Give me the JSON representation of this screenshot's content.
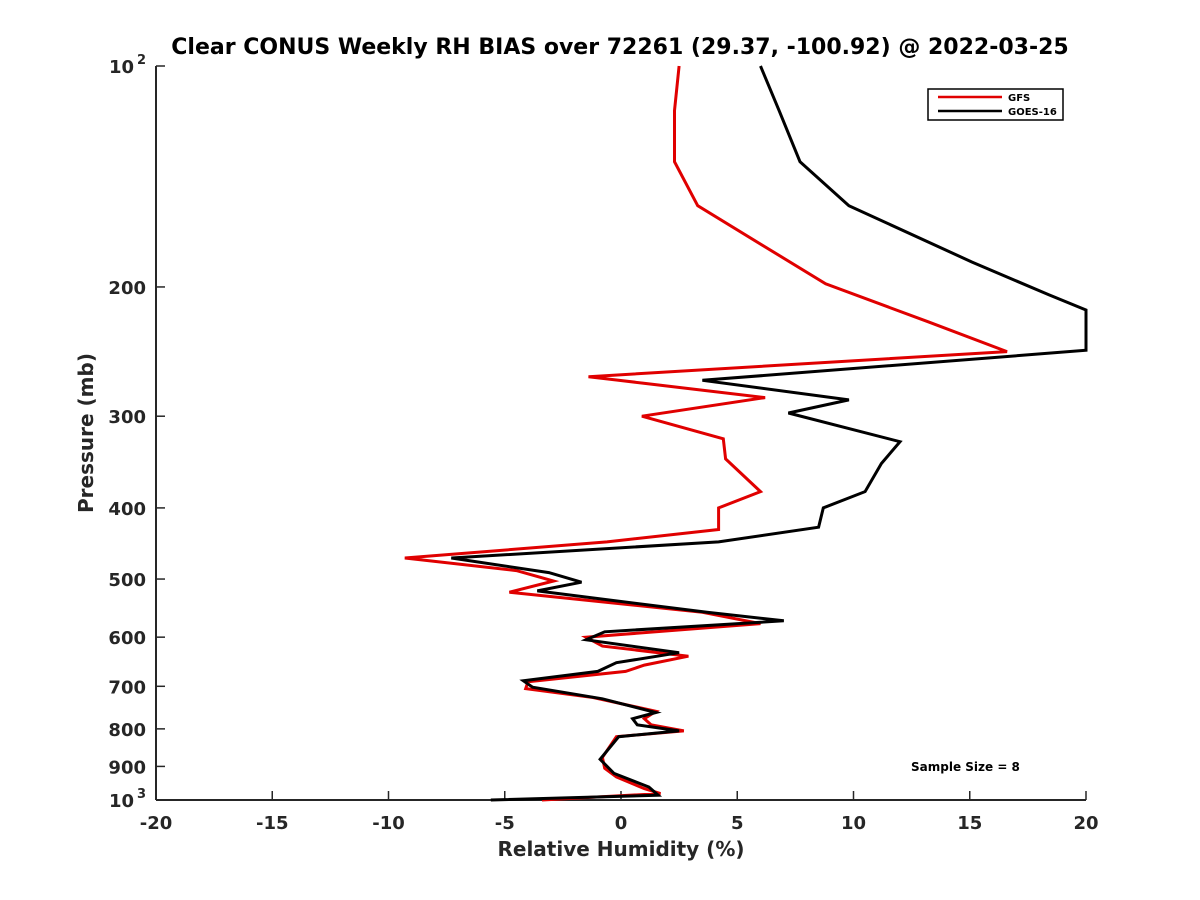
{
  "chart_data": {
    "type": "line",
    "title": "Clear CONUS Weekly RH BIAS over 72261 (29.37, -100.92) @ 2022-03-25",
    "xlabel": "Relative Humidity (%)",
    "ylabel": "Pressure (mb)",
    "xlim": [
      -20,
      20
    ],
    "ylim": [
      100,
      1000
    ],
    "y_scale": "log",
    "y_reversed": true,
    "grid": false,
    "x_ticks": [
      -20,
      -15,
      -10,
      -5,
      0,
      5,
      10,
      15,
      20
    ],
    "x_tick_labels": [
      "-20",
      "-15",
      "-10",
      "-5",
      "0",
      "5",
      "10",
      "15",
      "20"
    ],
    "y_ticks": [
      {
        "value": 100,
        "label": "10",
        "exp": "2"
      },
      {
        "value": 200,
        "label": "200",
        "exp": ""
      },
      {
        "value": 300,
        "label": "300",
        "exp": ""
      },
      {
        "value": 400,
        "label": "400",
        "exp": ""
      },
      {
        "value": 500,
        "label": "500",
        "exp": ""
      },
      {
        "value": 600,
        "label": "600",
        "exp": ""
      },
      {
        "value": 700,
        "label": "700",
        "exp": ""
      },
      {
        "value": 800,
        "label": "800",
        "exp": ""
      },
      {
        "value": 900,
        "label": "900",
        "exp": ""
      },
      {
        "value": 1000,
        "label": "10",
        "exp": "3"
      }
    ],
    "legend_position": "top-right",
    "annotation": "Sample Size = 8",
    "series": [
      {
        "name": "GFS",
        "color": "#e00000",
        "points": [
          [
            2.5,
            100
          ],
          [
            2.3,
            115
          ],
          [
            2.3,
            135
          ],
          [
            3.3,
            155
          ],
          [
            8.8,
            198
          ],
          [
            13.2,
            223
          ],
          [
            16.6,
            245
          ],
          [
            -1.4,
            265
          ],
          [
            6.2,
            283
          ],
          [
            0.9,
            300
          ],
          [
            4.4,
            322
          ],
          [
            4.5,
            343
          ],
          [
            6.0,
            380
          ],
          [
            4.2,
            400
          ],
          [
            4.2,
            428
          ],
          [
            -0.6,
            445
          ],
          [
            -9.3,
            468
          ],
          [
            -4.5,
            487
          ],
          [
            -2.9,
            503
          ],
          [
            -4.8,
            521
          ],
          [
            3.5,
            555
          ],
          [
            6.0,
            575
          ],
          [
            -1.5,
            600
          ],
          [
            -0.8,
            617
          ],
          [
            2.9,
            637
          ],
          [
            1.0,
            655
          ],
          [
            0.2,
            668
          ],
          [
            -4.0,
            690
          ],
          [
            -4.1,
            705
          ],
          [
            -1.2,
            725
          ],
          [
            1.5,
            757
          ],
          [
            1.0,
            775
          ],
          [
            1.3,
            790
          ],
          [
            2.7,
            805
          ],
          [
            -0.2,
            820
          ],
          [
            -0.8,
            875
          ],
          [
            -0.7,
            905
          ],
          [
            -0.2,
            930
          ],
          [
            1.0,
            965
          ],
          [
            1.7,
            980
          ],
          [
            -3.4,
            1000
          ]
        ]
      },
      {
        "name": "GOES-16",
        "color": "#000000",
        "points": [
          [
            6.0,
            100
          ],
          [
            6.8,
            115
          ],
          [
            7.7,
            135
          ],
          [
            9.8,
            155
          ],
          [
            15.1,
            185
          ],
          [
            18.4,
            205
          ],
          [
            20.0,
            215
          ],
          [
            20.0,
            244
          ],
          [
            3.5,
            268
          ],
          [
            9.8,
            285
          ],
          [
            7.2,
            297
          ],
          [
            12.0,
            325
          ],
          [
            11.2,
            348
          ],
          [
            10.5,
            380
          ],
          [
            8.7,
            400
          ],
          [
            8.5,
            425
          ],
          [
            4.2,
            445
          ],
          [
            -7.3,
            468
          ],
          [
            -3.1,
            490
          ],
          [
            -1.7,
            505
          ],
          [
            -3.6,
            519
          ],
          [
            3.7,
            555
          ],
          [
            7.0,
            570
          ],
          [
            -0.7,
            590
          ],
          [
            -1.5,
            605
          ],
          [
            2.5,
            630
          ],
          [
            -0.2,
            650
          ],
          [
            -1.0,
            668
          ],
          [
            -4.2,
            688
          ],
          [
            -3.8,
            702
          ],
          [
            -0.8,
            728
          ],
          [
            1.5,
            760
          ],
          [
            0.5,
            775
          ],
          [
            0.7,
            790
          ],
          [
            2.5,
            805
          ],
          [
            -0.1,
            820
          ],
          [
            -0.9,
            880
          ],
          [
            -0.3,
            920
          ],
          [
            1.2,
            960
          ],
          [
            1.6,
            985
          ],
          [
            -5.6,
            1000
          ]
        ]
      }
    ]
  }
}
